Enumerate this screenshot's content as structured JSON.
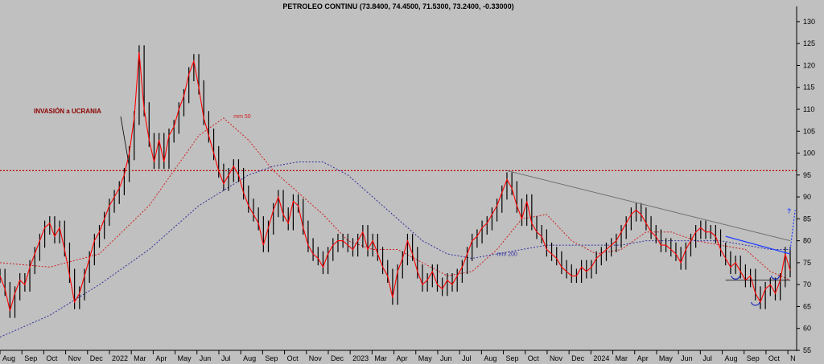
{
  "chart_data": {
    "type": "candlestick",
    "title": "PETROLEO CONTINU (73.8400, 74.4500, 71.5300, 73.2400, -0.33000)",
    "ylim": [
      55,
      132
    ],
    "y_ticks": [
      55,
      60,
      65,
      70,
      75,
      80,
      85,
      90,
      95,
      100,
      105,
      110,
      115,
      120,
      125,
      130
    ],
    "months": [
      "Aug",
      "Sep",
      "Oct",
      "Nov",
      "Dec",
      "2022",
      "Mar",
      "Apr",
      "May",
      "Jun",
      "Jul",
      "Aug",
      "Sep",
      "Oct",
      "Nov",
      "Dec",
      "2023",
      "Mar",
      "Apr",
      "May",
      "Jun",
      "Jul",
      "Aug",
      "Sep",
      "Oct",
      "Nov",
      "Dec",
      "2024",
      "Mar",
      "Apr",
      "May",
      "Jun",
      "Jul",
      "Aug",
      "Sep",
      "Oct",
      "N"
    ],
    "price_series": {
      "name": "PETROLEO CONTINU",
      "color": "#ff0000",
      "points": [
        [
          0,
          72
        ],
        [
          1,
          69
        ],
        [
          2,
          64
        ],
        [
          3,
          68
        ],
        [
          4,
          71
        ],
        [
          5,
          70
        ],
        [
          6,
          74
        ],
        [
          7,
          77
        ],
        [
          8,
          80
        ],
        [
          9,
          83
        ],
        [
          10,
          84
        ],
        [
          11,
          81
        ],
        [
          12,
          83
        ],
        [
          13,
          78
        ],
        [
          14,
          72
        ],
        [
          15,
          66
        ],
        [
          16,
          68
        ],
        [
          17,
          72
        ],
        [
          18,
          76
        ],
        [
          19,
          80
        ],
        [
          20,
          82
        ],
        [
          21,
          85
        ],
        [
          22,
          88
        ],
        [
          23,
          90
        ],
        [
          24,
          92
        ],
        [
          25,
          95
        ],
        [
          26,
          100
        ],
        [
          27,
          108
        ],
        [
          28,
          123
        ],
        [
          29,
          110
        ],
        [
          30,
          103
        ],
        [
          31,
          98
        ],
        [
          32,
          103
        ],
        [
          33,
          98
        ],
        [
          34,
          104
        ],
        [
          35,
          106
        ],
        [
          36,
          110
        ],
        [
          37,
          113
        ],
        [
          38,
          118
        ],
        [
          39,
          121
        ],
        [
          40,
          115
        ],
        [
          41,
          108
        ],
        [
          42,
          104
        ],
        [
          43,
          100
        ],
        [
          44,
          96
        ],
        [
          45,
          93
        ],
        [
          46,
          95
        ],
        [
          47,
          97
        ],
        [
          48,
          95
        ],
        [
          49,
          91
        ],
        [
          50,
          88
        ],
        [
          51,
          86
        ],
        [
          52,
          84
        ],
        [
          53,
          79
        ],
        [
          54,
          83
        ],
        [
          55,
          87
        ],
        [
          56,
          90
        ],
        [
          57,
          86
        ],
        [
          58,
          84
        ],
        [
          59,
          89
        ],
        [
          60,
          88
        ],
        [
          61,
          83
        ],
        [
          62,
          79
        ],
        [
          63,
          77
        ],
        [
          64,
          76
        ],
        [
          65,
          74
        ],
        [
          66,
          77
        ],
        [
          67,
          79
        ],
        [
          68,
          80
        ],
        [
          69,
          80
        ],
        [
          70,
          79
        ],
        [
          71,
          78
        ],
        [
          72,
          80
        ],
        [
          73,
          82
        ],
        [
          74,
          78
        ],
        [
          75,
          80
        ],
        [
          76,
          77
        ],
        [
          77,
          74
        ],
        [
          78,
          72
        ],
        [
          79,
          67
        ],
        [
          80,
          73
        ],
        [
          81,
          76
        ],
        [
          82,
          80
        ],
        [
          83,
          77
        ],
        [
          84,
          73
        ],
        [
          85,
          70
        ],
        [
          86,
          71
        ],
        [
          87,
          73
        ],
        [
          88,
          70
        ],
        [
          89,
          69
        ],
        [
          90,
          71
        ],
        [
          91,
          70
        ],
        [
          92,
          72
        ],
        [
          93,
          74
        ],
        [
          94,
          77
        ],
        [
          95,
          80
        ],
        [
          96,
          81
        ],
        [
          97,
          83
        ],
        [
          98,
          84
        ],
        [
          99,
          86
        ],
        [
          100,
          88
        ],
        [
          101,
          91
        ],
        [
          102,
          94
        ],
        [
          103,
          92
        ],
        [
          104,
          88
        ],
        [
          105,
          85
        ],
        [
          106,
          89
        ],
        [
          107,
          84
        ],
        [
          108,
          82
        ],
        [
          109,
          81
        ],
        [
          110,
          78
        ],
        [
          111,
          77
        ],
        [
          112,
          76
        ],
        [
          113,
          74
        ],
        [
          114,
          73
        ],
        [
          115,
          72
        ],
        [
          116,
          72
        ],
        [
          117,
          74
        ],
        [
          118,
          73
        ],
        [
          119,
          74
        ],
        [
          120,
          76
        ],
        [
          121,
          77
        ],
        [
          122,
          78
        ],
        [
          123,
          79
        ],
        [
          124,
          80
        ],
        [
          125,
          82
        ],
        [
          126,
          84
        ],
        [
          127,
          86
        ],
        [
          128,
          87
        ],
        [
          129,
          86
        ],
        [
          130,
          84
        ],
        [
          131,
          82
        ],
        [
          132,
          81
        ],
        [
          133,
          79
        ],
        [
          134,
          79
        ],
        [
          135,
          78
        ],
        [
          136,
          77
        ],
        [
          137,
          75
        ],
        [
          138,
          78
        ],
        [
          139,
          80
        ],
        [
          140,
          82
        ],
        [
          141,
          83
        ],
        [
          142,
          82
        ],
        [
          143,
          82
        ],
        [
          144,
          81
        ],
        [
          145,
          78
        ],
        [
          146,
          76
        ],
        [
          147,
          74
        ],
        [
          148,
          75
        ],
        [
          149,
          73
        ],
        [
          150,
          71
        ],
        [
          151,
          72
        ],
        [
          152,
          68
        ],
        [
          153,
          66
        ],
        [
          154,
          69
        ],
        [
          155,
          70
        ],
        [
          156,
          68
        ],
        [
          157,
          71
        ],
        [
          158,
          77
        ],
        [
          159,
          73.24
        ]
      ]
    },
    "ma_series": [
      {
        "name": "mm 50",
        "color": "#d02020",
        "points": [
          [
            0,
            75
          ],
          [
            10,
            74
          ],
          [
            20,
            77
          ],
          [
            30,
            88
          ],
          [
            40,
            104
          ],
          [
            45,
            108
          ],
          [
            50,
            103
          ],
          [
            55,
            96
          ],
          [
            60,
            91
          ],
          [
            65,
            86
          ],
          [
            70,
            80
          ],
          [
            75,
            78
          ],
          [
            80,
            78
          ],
          [
            85,
            75
          ],
          [
            90,
            72
          ],
          [
            95,
            73
          ],
          [
            100,
            78
          ],
          [
            105,
            85
          ],
          [
            110,
            86
          ],
          [
            115,
            80
          ],
          [
            120,
            77
          ],
          [
            125,
            78
          ],
          [
            130,
            82
          ],
          [
            135,
            82
          ],
          [
            140,
            80
          ],
          [
            145,
            79
          ],
          [
            150,
            78
          ],
          [
            155,
            73
          ],
          [
            159,
            71
          ]
        ]
      },
      {
        "name": "mm 200",
        "color": "#3030a0",
        "points": [
          [
            0,
            58
          ],
          [
            10,
            63
          ],
          [
            20,
            70
          ],
          [
            30,
            78
          ],
          [
            40,
            88
          ],
          [
            50,
            95
          ],
          [
            55,
            97
          ],
          [
            60,
            98
          ],
          [
            65,
            98
          ],
          [
            70,
            95
          ],
          [
            75,
            90
          ],
          [
            80,
            85
          ],
          [
            85,
            80
          ],
          [
            90,
            77
          ],
          [
            95,
            76
          ],
          [
            100,
            77
          ],
          [
            105,
            78
          ],
          [
            110,
            79
          ],
          [
            115,
            79
          ],
          [
            120,
            79
          ],
          [
            125,
            79
          ],
          [
            130,
            80
          ],
          [
            135,
            80
          ],
          [
            140,
            80
          ],
          [
            145,
            80
          ],
          [
            150,
            79
          ],
          [
            155,
            78
          ],
          [
            159,
            78
          ]
        ]
      }
    ],
    "annotations": {
      "invasion_label": "INVASIÓN a UCRANIA",
      "mm50_label": "mm 50",
      "mm200_label": "mm 200",
      "question_mark": "?",
      "horizontal_level": 96,
      "downtrend_line": {
        "from": [
          102,
          96
        ],
        "to": [
          159,
          80
        ]
      },
      "blue_trend_line": {
        "from": [
          146,
          81
        ],
        "to": [
          159,
          77
        ]
      },
      "support_line": {
        "from": [
          146,
          71
        ],
        "to": [
          159,
          71
        ]
      },
      "projection_arrow": {
        "from": [
          159,
          78
        ],
        "to": [
          160,
          87
        ]
      }
    },
    "grid": false,
    "colors": {
      "background": "#c0c0c0",
      "candles": "#000000",
      "price": "#ff0000",
      "level_line": "#c00000",
      "trend_line": "#707070",
      "blue_line": "#2040ff",
      "projection": "#2040ff"
    }
  }
}
